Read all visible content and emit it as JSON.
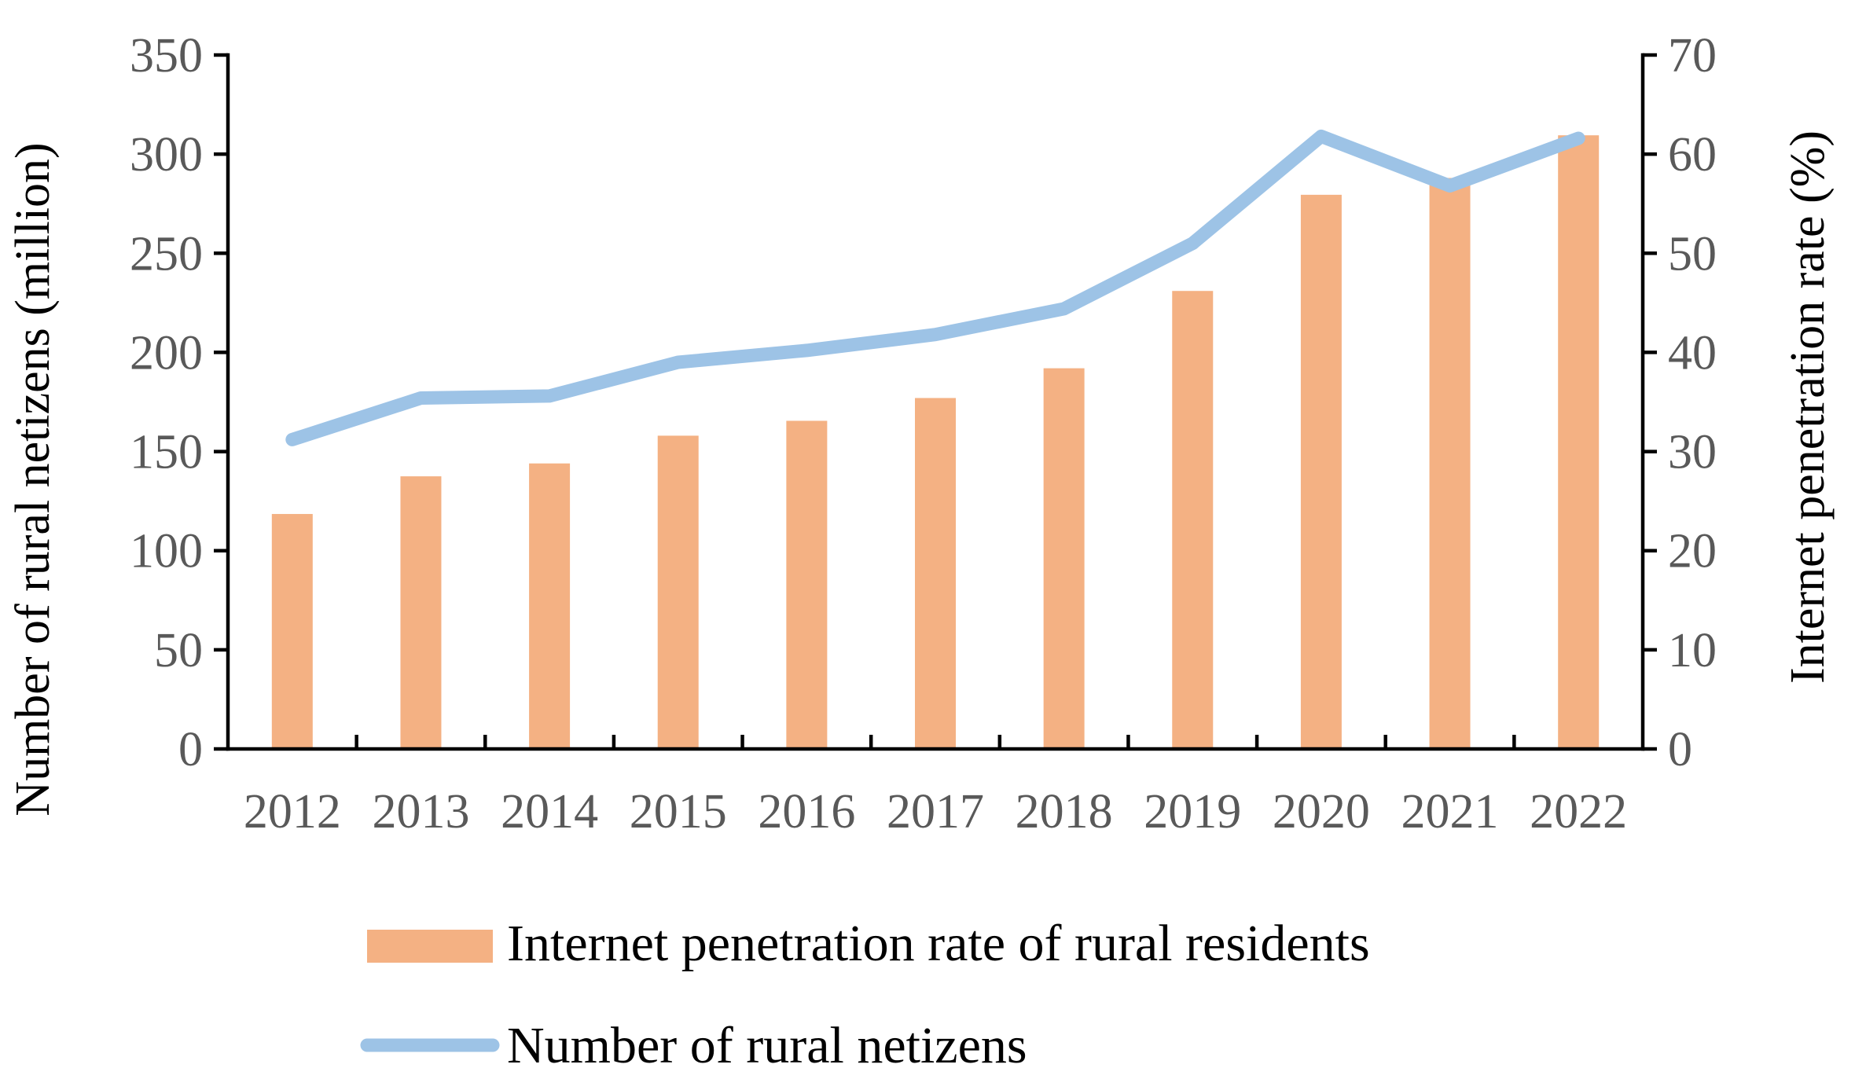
{
  "chart_data": {
    "type": "bar+line",
    "categories": [
      "2012",
      "2013",
      "2014",
      "2015",
      "2016",
      "2017",
      "2018",
      "2019",
      "2020",
      "2021",
      "2022"
    ],
    "series": [
      {
        "name": "Internet penetration rate of rural residents",
        "type": "bar",
        "axis": "right",
        "color": "#F4B183",
        "values": [
          23.7,
          27.5,
          28.8,
          31.6,
          33.1,
          35.4,
          38.4,
          46.2,
          55.9,
          57.6,
          61.9
        ]
      },
      {
        "name": "Number of rural netizens",
        "type": "line",
        "axis": "left",
        "color": "#9DC3E6",
        "values": [
          156,
          177,
          178,
          195,
          201,
          209,
          222,
          255,
          309,
          284,
          308
        ]
      }
    ],
    "left_axis": {
      "title": "Number of rural netizens (million)",
      "range": [
        0,
        350
      ],
      "ticks": [
        "0",
        "50",
        "100",
        "150",
        "200",
        "250",
        "300",
        "350"
      ]
    },
    "right_axis": {
      "title": "Internet penetration rate (%)",
      "range": [
        0,
        70
      ],
      "ticks": [
        "0",
        "10",
        "20",
        "30",
        "40",
        "50",
        "60",
        "70"
      ]
    },
    "legend": {
      "placement": "bottom",
      "items": [
        "Internet penetration rate of rural residents",
        "Number of rural netizens"
      ]
    },
    "grid": false
  }
}
